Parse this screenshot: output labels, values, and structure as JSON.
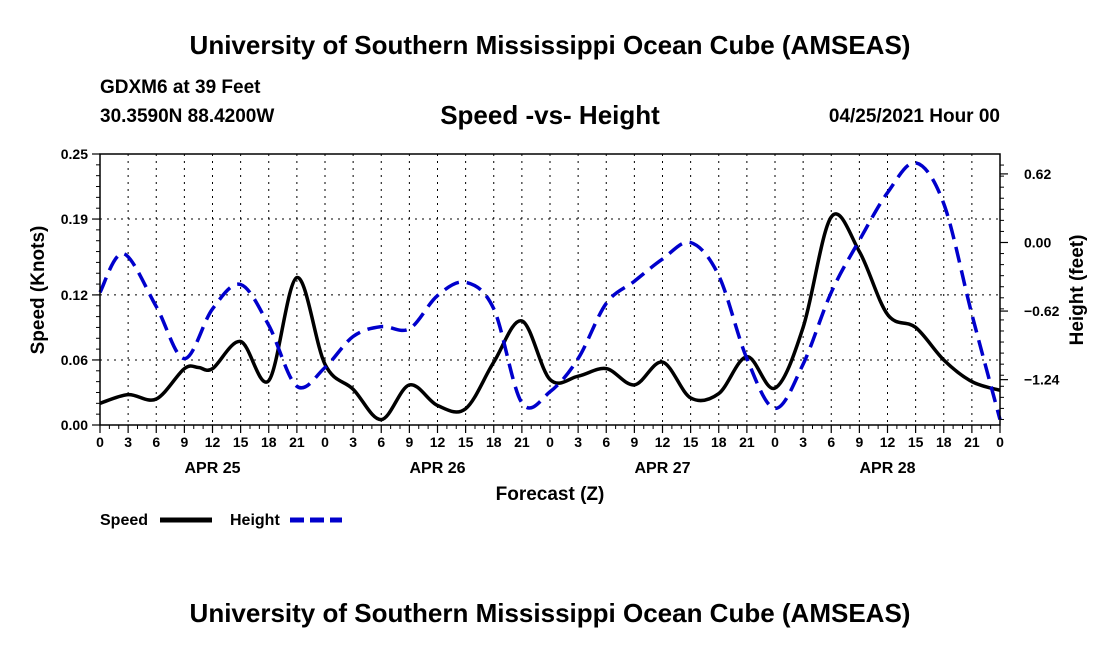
{
  "header": {
    "title": "University of Southern Mississippi Ocean Cube (AMSEAS)",
    "station": "GDXM6 at 39 Feet",
    "coords": "30.3590N  88.4200W",
    "chart_title": "Speed -vs- Height",
    "datetime": "04/25/2021 Hour 00"
  },
  "footer": {
    "title": "University of Southern Mississippi Ocean Cube (AMSEAS)"
  },
  "colors": {
    "speed": "#000000",
    "height": "#0000cc"
  },
  "chart_data": {
    "type": "line",
    "title": "Speed -vs- Height",
    "xlabel": "Forecast (Z)",
    "ylabel": "Speed (Knots)",
    "y2label": "Height (feet)",
    "xlim": [
      0,
      96
    ],
    "ylim": [
      0,
      0.25
    ],
    "y2lim": [
      -1.65,
      0.8
    ],
    "yticks": [
      0,
      0.06,
      0.12,
      0.19,
      0.25
    ],
    "ytick_labels": [
      "0.00",
      "0.06",
      "0.12",
      "0.19",
      "0.25"
    ],
    "y2ticks": [
      -1.24,
      -0.62,
      0.0,
      0.62
    ],
    "y2tick_labels": [
      "−1.24",
      "−0.62",
      "0.00",
      "0.62"
    ],
    "xticks": [
      0,
      3,
      6,
      9,
      12,
      15,
      18,
      21,
      24,
      27,
      30,
      33,
      36,
      39,
      42,
      45,
      48,
      51,
      54,
      57,
      60,
      63,
      66,
      69,
      72,
      75,
      78,
      81,
      84,
      87,
      90,
      93,
      96
    ],
    "xtick_labels": [
      "0",
      "3",
      "6",
      "9",
      "12",
      "15",
      "18",
      "21",
      "0",
      "3",
      "6",
      "9",
      "12",
      "15",
      "18",
      "21",
      "0",
      "3",
      "6",
      "9",
      "12",
      "15",
      "18",
      "21",
      "0",
      "3",
      "6",
      "9",
      "12",
      "15",
      "18",
      "21",
      "0"
    ],
    "day_labels": [
      {
        "x": 12,
        "label": "APR 25"
      },
      {
        "x": 36,
        "label": "APR 26"
      },
      {
        "x": 60,
        "label": "APR 27"
      },
      {
        "x": 84,
        "label": "APR 28"
      }
    ],
    "series": [
      {
        "name": "Speed",
        "axis": "left",
        "style": "solid",
        "x": [
          0,
          3,
          6,
          9,
          10.5,
          12,
          15,
          18,
          21,
          24,
          27,
          30,
          33,
          36,
          39,
          42,
          45,
          48,
          51,
          54,
          57,
          60,
          63,
          66,
          69,
          72,
          75,
          78,
          81,
          84,
          87,
          90,
          93,
          96
        ],
        "y": [
          0.02,
          0.028,
          0.024,
          0.052,
          0.053,
          0.052,
          0.077,
          0.041,
          0.136,
          0.056,
          0.033,
          0.005,
          0.037,
          0.018,
          0.015,
          0.058,
          0.096,
          0.042,
          0.045,
          0.052,
          0.037,
          0.058,
          0.025,
          0.029,
          0.063,
          0.034,
          0.09,
          0.192,
          0.16,
          0.102,
          0.09,
          0.06,
          0.04,
          0.032
        ]
      },
      {
        "name": "Height",
        "axis": "right",
        "style": "dashed",
        "x": [
          0,
          2.5,
          6,
          9,
          12,
          15,
          18,
          21,
          24,
          27,
          30,
          33,
          36,
          39,
          42,
          45,
          48,
          51,
          54,
          57,
          60,
          63,
          66,
          69,
          72,
          75,
          78,
          81,
          84,
          87,
          90,
          93,
          96
        ],
        "y": [
          -0.45,
          -0.1,
          -0.58,
          -1.05,
          -0.6,
          -0.38,
          -0.75,
          -1.3,
          -1.13,
          -0.85,
          -0.76,
          -0.78,
          -0.48,
          -0.36,
          -0.6,
          -1.45,
          -1.35,
          -1.05,
          -0.55,
          -0.35,
          -0.15,
          0.0,
          -0.3,
          -1.05,
          -1.5,
          -1.1,
          -0.45,
          0.02,
          0.45,
          0.72,
          0.35,
          -0.65,
          -1.6
        ]
      }
    ],
    "legend": [
      {
        "label": "Speed",
        "style": "solid"
      },
      {
        "label": "Height",
        "style": "dashed"
      }
    ]
  }
}
